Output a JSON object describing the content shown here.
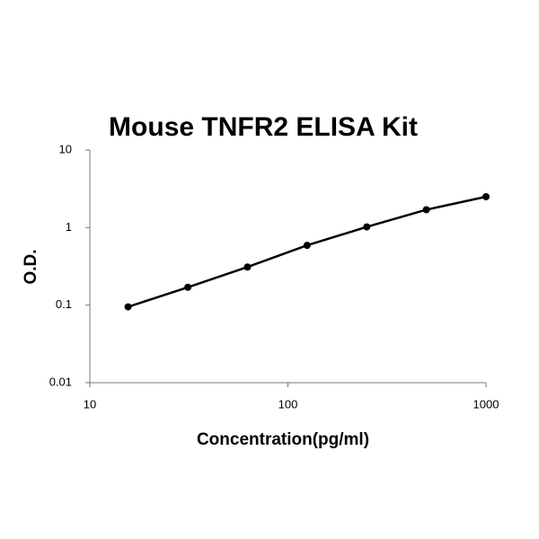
{
  "chart_data": {
    "type": "line",
    "title": "Mouse TNFR2 ELISA Kit",
    "x_label": "Concentration(pg/ml)",
    "y_label": "O.D.",
    "x": [
      15.6,
      31.25,
      62.5,
      125,
      250,
      500,
      1000
    ],
    "values": [
      0.095,
      0.17,
      0.31,
      0.59,
      1.02,
      1.7,
      2.5
    ],
    "color": "#000000",
    "x_log": true,
    "y_log": true,
    "xlim": [
      10,
      1000
    ],
    "ylim": [
      0.01,
      10
    ],
    "xticks": [
      10,
      100,
      1000
    ],
    "yticks": [
      0.01,
      0.1,
      1,
      10
    ],
    "grid": false
  }
}
